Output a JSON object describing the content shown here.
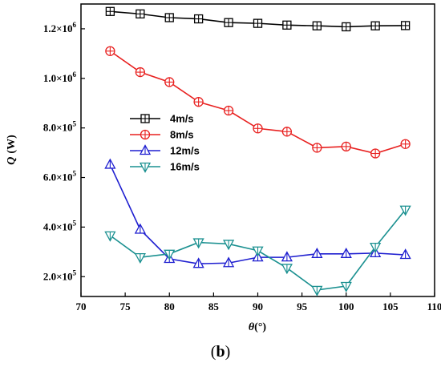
{
  "chart_data": {
    "type": "line",
    "xlabel_symbol": "θ",
    "xlabel_unit": "(°)",
    "ylabel_symbol": "Q",
    "ylabel_unit": "(W)",
    "xlim": [
      70,
      110
    ],
    "ylim": [
      120000,
      1300000
    ],
    "xticks": [
      70,
      75,
      80,
      85,
      90,
      95,
      100,
      105,
      110
    ],
    "yticks": [
      {
        "value": 200000,
        "mantissa": "2.0×10",
        "exp": "5"
      },
      {
        "value": 400000,
        "mantissa": "4.0×10",
        "exp": "5"
      },
      {
        "value": 600000,
        "mantissa": "6.0×10",
        "exp": "5"
      },
      {
        "value": 800000,
        "mantissa": "8.0×10",
        "exp": "5"
      },
      {
        "value": 1000000,
        "mantissa": "1.0×10",
        "exp": "6"
      },
      {
        "value": 1200000,
        "mantissa": "1.2×10",
        "exp": "6"
      }
    ],
    "legend_position": "center-left",
    "x": [
      73.3,
      76.7,
      80,
      83.3,
      86.7,
      90,
      93.3,
      96.7,
      100,
      103.3,
      106.7
    ],
    "series": [
      {
        "name": "4m/s",
        "color": "#000000",
        "marker": "square-plus",
        "values": [
          1270000,
          1260000,
          1245000,
          1240000,
          1225000,
          1222000,
          1215000,
          1212000,
          1208000,
          1212000,
          1213000
        ]
      },
      {
        "name": "8m/s",
        "color": "#e8201f",
        "marker": "circle-plus",
        "values": [
          1110000,
          1025000,
          985000,
          905000,
          870000,
          798000,
          785000,
          720000,
          725000,
          697000,
          735000
        ]
      },
      {
        "name": "12m/s",
        "color": "#1f1fd0",
        "marker": "triangle-up",
        "values": [
          652000,
          390000,
          272000,
          252000,
          255000,
          278000,
          278000,
          292000,
          292000,
          295000,
          288000
        ]
      },
      {
        "name": "16m/s",
        "color": "#1a9090",
        "marker": "triangle-down",
        "values": [
          366000,
          278000,
          292000,
          338000,
          332000,
          305000,
          235000,
          146000,
          162000,
          320000,
          470000
        ]
      }
    ]
  },
  "panel_label": "b"
}
